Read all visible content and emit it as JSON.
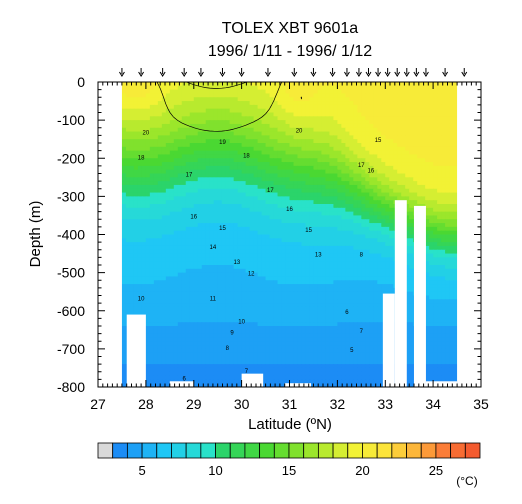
{
  "chart_data": {
    "type": "heatmap",
    "title": "TOLEX XBT 9601a",
    "subtitle": "1996/ 1/11 - 1996/ 1/12",
    "xlabel": "Latitude (ºN)",
    "ylabel": "Depth (m)",
    "xlim": [
      27,
      35
    ],
    "ylim": [
      -800,
      0
    ],
    "x_ticks": [
      "27",
      "28",
      "29",
      "30",
      "31",
      "32",
      "33",
      "34",
      "35"
    ],
    "y_ticks": [
      "0",
      "-100",
      "-200",
      "-300",
      "-400",
      "-500",
      "-600",
      "-700",
      "-800"
    ],
    "station_latitudes": [
      27.5,
      27.9,
      28.35,
      28.8,
      29.15,
      29.6,
      30.0,
      30.55,
      31.1,
      31.5,
      31.9,
      32.2,
      32.45,
      32.65,
      32.85,
      33.05,
      33.25,
      33.45,
      33.65,
      33.85,
      34.25,
      34.65
    ],
    "contour_labels": [
      {
        "text": "20",
        "lat": 28.0,
        "depth": -130
      },
      {
        "text": "20",
        "lat": 31.2,
        "depth": -125
      },
      {
        "text": "19",
        "lat": 29.6,
        "depth": -155
      },
      {
        "text": "18",
        "lat": 27.9,
        "depth": -195
      },
      {
        "text": "18",
        "lat": 30.1,
        "depth": -190
      },
      {
        "text": "17",
        "lat": 28.9,
        "depth": -240
      },
      {
        "text": "17",
        "lat": 30.6,
        "depth": -280
      },
      {
        "text": "16",
        "lat": 29.0,
        "depth": -350
      },
      {
        "text": "16",
        "lat": 31.0,
        "depth": -330
      },
      {
        "text": "15",
        "lat": 29.6,
        "depth": -380
      },
      {
        "text": "15",
        "lat": 31.4,
        "depth": -385
      },
      {
        "text": "14",
        "lat": 29.4,
        "depth": -430
      },
      {
        "text": "13",
        "lat": 29.9,
        "depth": -470
      },
      {
        "text": "13",
        "lat": 31.6,
        "depth": -450
      },
      {
        "text": "12",
        "lat": 30.2,
        "depth": -500
      },
      {
        "text": "11",
        "lat": 29.4,
        "depth": -565
      },
      {
        "text": "10",
        "lat": 27.9,
        "depth": -565
      },
      {
        "text": "10",
        "lat": 30.0,
        "depth": -625
      },
      {
        "text": "9",
        "lat": 29.8,
        "depth": -655
      },
      {
        "text": "8",
        "lat": 29.7,
        "depth": -695
      },
      {
        "text": "7",
        "lat": 30.1,
        "depth": -755
      },
      {
        "text": "6",
        "lat": 28.8,
        "depth": -775
      },
      {
        "text": "17",
        "lat": 32.5,
        "depth": -215
      },
      {
        "text": "16",
        "lat": 32.7,
        "depth": -230
      },
      {
        "text": "15",
        "lat": 32.85,
        "depth": -150
      },
      {
        "text": "8",
        "lat": 32.5,
        "depth": -450
      },
      {
        "text": "7",
        "lat": 32.5,
        "depth": -650
      },
      {
        "text": "6",
        "lat": 32.2,
        "depth": -600
      },
      {
        "text": "5",
        "lat": 32.3,
        "depth": -700
      }
    ],
    "colorbar": {
      "levels": [
        2,
        3,
        4,
        5,
        6,
        7,
        8,
        9,
        10,
        11,
        12,
        13,
        14,
        15,
        16,
        17,
        18,
        19,
        20,
        21,
        22,
        23,
        24,
        25,
        26,
        27,
        28
      ],
      "tick_labels": [
        "5",
        "10",
        "15",
        "20",
        "25"
      ],
      "tick_values": [
        5,
        10,
        15,
        20,
        25
      ],
      "unit": "(°C)"
    },
    "grid": false
  }
}
